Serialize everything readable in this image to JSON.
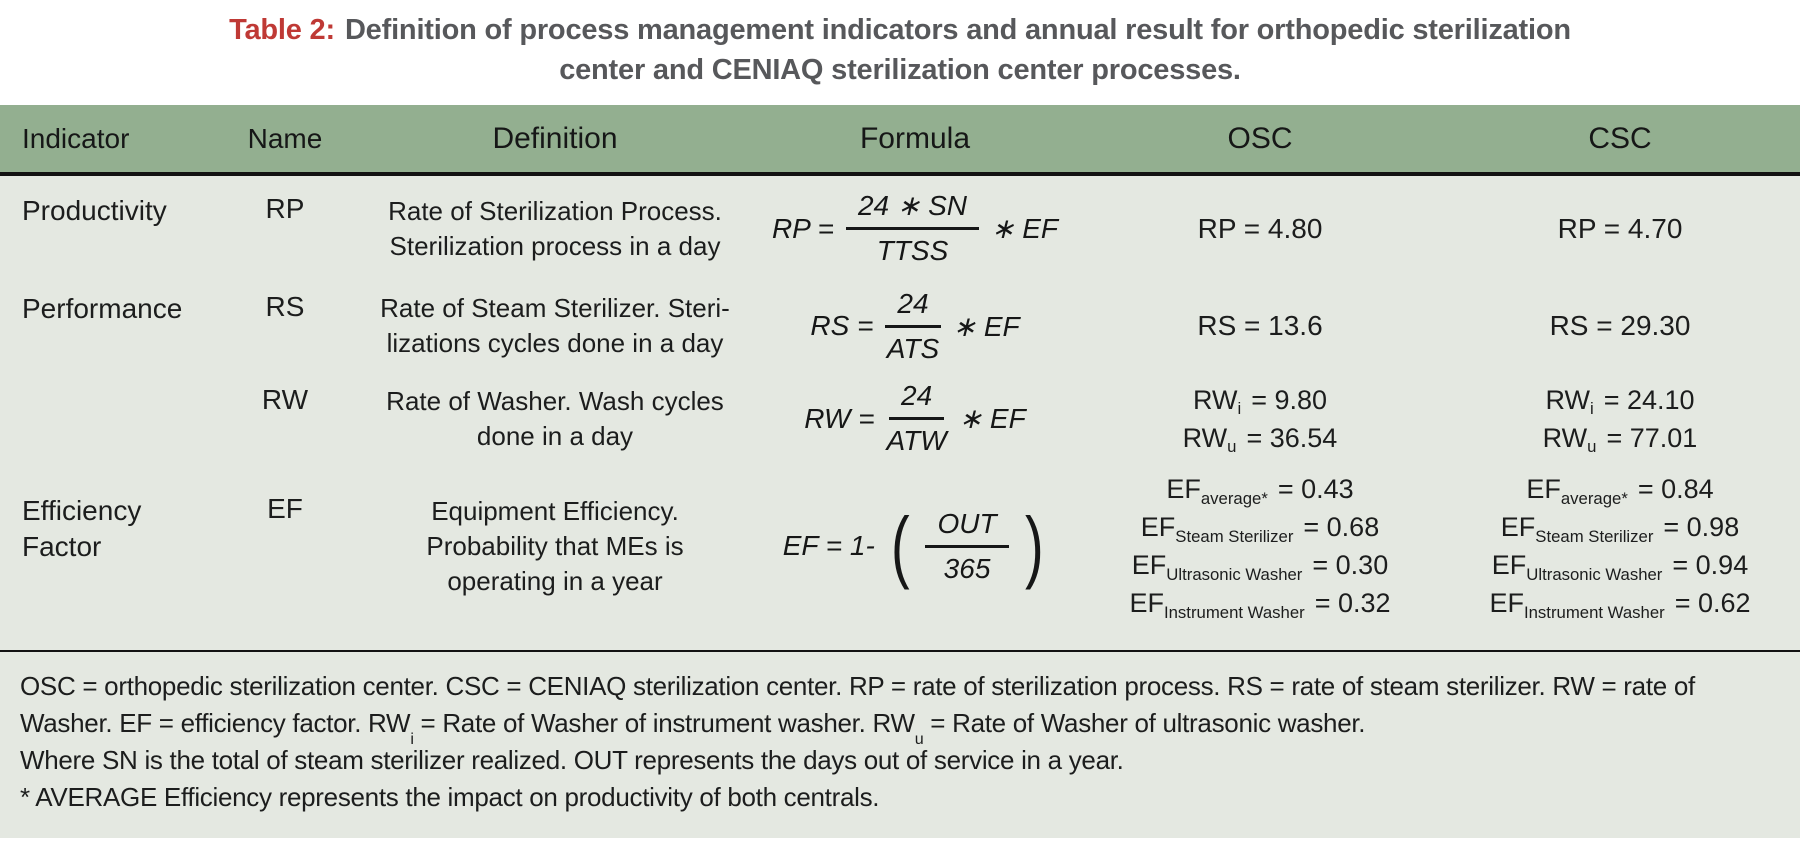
{
  "colors": {
    "header_green": "#93af90",
    "body_background": "#e4e8e1",
    "caption_accent_red": "#bf3935",
    "caption_gray": "#57585b",
    "text": "#1c1d1d"
  },
  "title": {
    "label": "Table 2:",
    "line1": "Definition of process management indicators and annual result for orthopedic sterilization",
    "line2": "center and CENIAQ sterilization center processes."
  },
  "header": {
    "col_indicator": "Indicator",
    "col_name": "Name",
    "col_definition": "Definition",
    "col_formula": "Formula",
    "col_osc": "OSC",
    "col_csc": "CSC"
  },
  "rows": {
    "productivity": {
      "indicator": "Productivity",
      "name": "RP",
      "definition_line1": "Rate of Sterilization Process.",
      "definition_line2": "Sterilization process in a day",
      "formula": {
        "lhs": "RP =",
        "numerator": "24 ∗ SN",
        "denominator": "TTSS",
        "multiplier": "∗ EF"
      },
      "osc_result": "RP = 4.80",
      "csc_result": "RP = 4.70"
    },
    "performance": {
      "indicator": "Performance",
      "name": "RS",
      "definition_line1": "Rate of Steam Sterilizer. Steri-",
      "definition_line2": "lizations cycles done in a day",
      "formula": {
        "lhs": "RS =",
        "numerator": "24",
        "denominator": "ATS",
        "multiplier": "∗ EF"
      },
      "osc_result": "RS = 13.6",
      "csc_result": "RS = 29.30"
    },
    "washer": {
      "indicator": "",
      "name": "RW",
      "definition_line1": "Rate of Washer. Wash cycles",
      "definition_line2": "done in a day",
      "formula": {
        "lhs": "RW =",
        "numerator": "24",
        "denominator": "ATW",
        "multiplier": "∗ EF"
      },
      "osc_results": [
        {
          "base": "RW",
          "sub": "i",
          "value": "= 9.80"
        },
        {
          "base": "RW",
          "sub": "u",
          "value": "= 36.54"
        }
      ],
      "csc_results": [
        {
          "base": "RW",
          "sub": "i",
          "value": "= 24.10"
        },
        {
          "base": "RW",
          "sub": "u",
          "value": "= 77.01"
        }
      ]
    },
    "efficiency": {
      "indicator_line1": "Efficiency",
      "indicator_line2": "Factor",
      "name": "EF",
      "definition_line1": "Equipment Efficiency.",
      "definition_line2": "Probability that MEs is",
      "definition_line3": "operating in a year",
      "formula": {
        "lhs": "EF = 1-",
        "numerator": "OUT",
        "denominator": "365",
        "open_paren": "(",
        "close_paren": ")"
      },
      "osc_results": [
        {
          "base": "EF",
          "sub": "average*",
          "value": "= 0.43"
        },
        {
          "base": "EF",
          "sub": "Steam Sterilizer",
          "value": "= 0.68"
        },
        {
          "base": "EF",
          "sub": "Ultrasonic Washer",
          "value": "= 0.30"
        },
        {
          "base": "EF",
          "sub": "Instrument Washer",
          "value": "= 0.32"
        }
      ],
      "csc_results": [
        {
          "base": "EF",
          "sub": "average*",
          "value": "= 0.84"
        },
        {
          "base": "EF",
          "sub": "Steam Sterilizer",
          "value": "= 0.98"
        },
        {
          "base": "EF",
          "sub": "Ultrasonic Washer",
          "value": "= 0.94"
        },
        {
          "base": "EF",
          "sub": "Instrument Washer",
          "value": "= 0.62"
        }
      ]
    }
  },
  "footnotes": {
    "line1": "OSC = orthopedic sterilization center. CSC = CENIAQ sterilization center. RP = rate of sterilization process. RS = rate of steam sterilizer. RW = rate of",
    "line2_seg1": "Washer. EF = efficiency factor. RW",
    "line2_sub1": "i",
    "line2_seg2": " = Rate of Washer of instrument washer. RW",
    "line2_sub2": "u",
    "line2_seg3": " = Rate of Washer of ultrasonic washer.",
    "line3": "Where SN is the total of steam sterilizer realized. OUT represents the days out of service in a year.",
    "line4": "* AVERAGE Efficiency represents the impact on productivity of both centrals."
  }
}
